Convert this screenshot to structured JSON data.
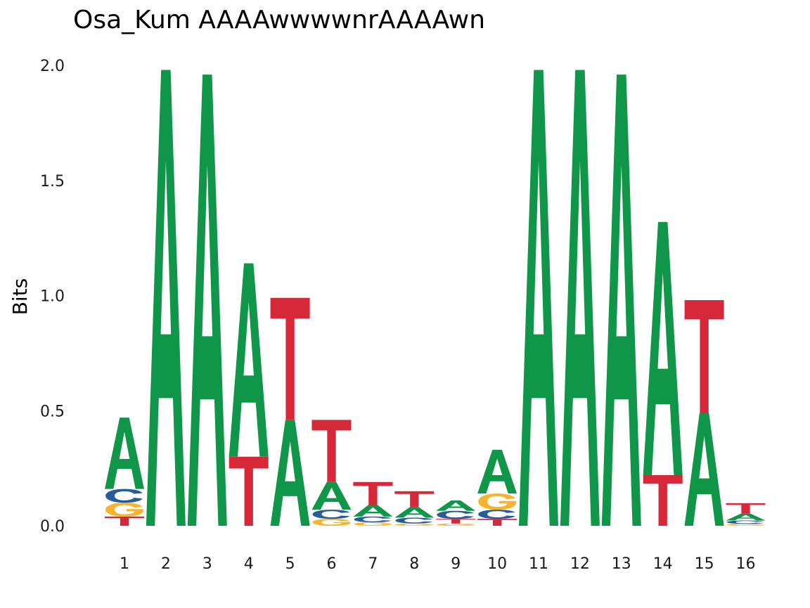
{
  "chart_data": {
    "type": "sequence-logo",
    "title": "Osa_Kum AAAAwwwwnrAAAAwn",
    "ylabel": "Bits",
    "xlabel": "",
    "ylim": [
      0,
      2
    ],
    "yticks": [
      "0.0",
      "0.5",
      "1.0",
      "1.5",
      "2.0"
    ],
    "ytick_values": [
      0,
      0.5,
      1.0,
      1.5,
      2.0
    ],
    "positions": [
      "1",
      "2",
      "3",
      "4",
      "5",
      "6",
      "7",
      "8",
      "9",
      "10",
      "11",
      "12",
      "13",
      "14",
      "15",
      "16"
    ],
    "colors": {
      "A": "#109648",
      "C": "#255C99",
      "G": "#F7B32B",
      "T": "#D62839"
    },
    "stacks": [
      [
        {
          "base": "T",
          "bits": 0.04
        },
        {
          "base": "G",
          "bits": 0.06
        },
        {
          "base": "C",
          "bits": 0.06
        },
        {
          "base": "A",
          "bits": 0.31
        }
      ],
      [
        {
          "base": "A",
          "bits": 1.98
        }
      ],
      [
        {
          "base": "A",
          "bits": 1.96
        }
      ],
      [
        {
          "base": "T",
          "bits": 0.3
        },
        {
          "base": "A",
          "bits": 0.84
        }
      ],
      [
        {
          "base": "A",
          "bits": 0.46
        },
        {
          "base": "T",
          "bits": 0.53
        }
      ],
      [
        {
          "base": "G",
          "bits": 0.03
        },
        {
          "base": "C",
          "bits": 0.04
        },
        {
          "base": "A",
          "bits": 0.12
        },
        {
          "base": "T",
          "bits": 0.27
        }
      ],
      [
        {
          "base": "G",
          "bits": 0.015
        },
        {
          "base": "C",
          "bits": 0.025
        },
        {
          "base": "A",
          "bits": 0.05
        },
        {
          "base": "T",
          "bits": 0.1
        }
      ],
      [
        {
          "base": "G",
          "bits": 0.01
        },
        {
          "base": "C",
          "bits": 0.025
        },
        {
          "base": "A",
          "bits": 0.045
        },
        {
          "base": "T",
          "bits": 0.07
        }
      ],
      [
        {
          "base": "G",
          "bits": 0.01
        },
        {
          "base": "T",
          "bits": 0.02
        },
        {
          "base": "C",
          "bits": 0.035
        },
        {
          "base": "A",
          "bits": 0.045
        }
      ],
      [
        {
          "base": "T",
          "bits": 0.03
        },
        {
          "base": "C",
          "bits": 0.04
        },
        {
          "base": "G",
          "bits": 0.07
        },
        {
          "base": "A",
          "bits": 0.19
        }
      ],
      [
        {
          "base": "A",
          "bits": 1.98
        }
      ],
      [
        {
          "base": "A",
          "bits": 1.98
        }
      ],
      [
        {
          "base": "A",
          "bits": 1.96
        }
      ],
      [
        {
          "base": "T",
          "bits": 0.22
        },
        {
          "base": "A",
          "bits": 1.1
        }
      ],
      [
        {
          "base": "A",
          "bits": 0.49
        },
        {
          "base": "T",
          "bits": 0.49
        }
      ],
      [
        {
          "base": "G",
          "bits": 0.008
        },
        {
          "base": "C",
          "bits": 0.015
        },
        {
          "base": "A",
          "bits": 0.03
        },
        {
          "base": "T",
          "bits": 0.045
        }
      ]
    ]
  }
}
